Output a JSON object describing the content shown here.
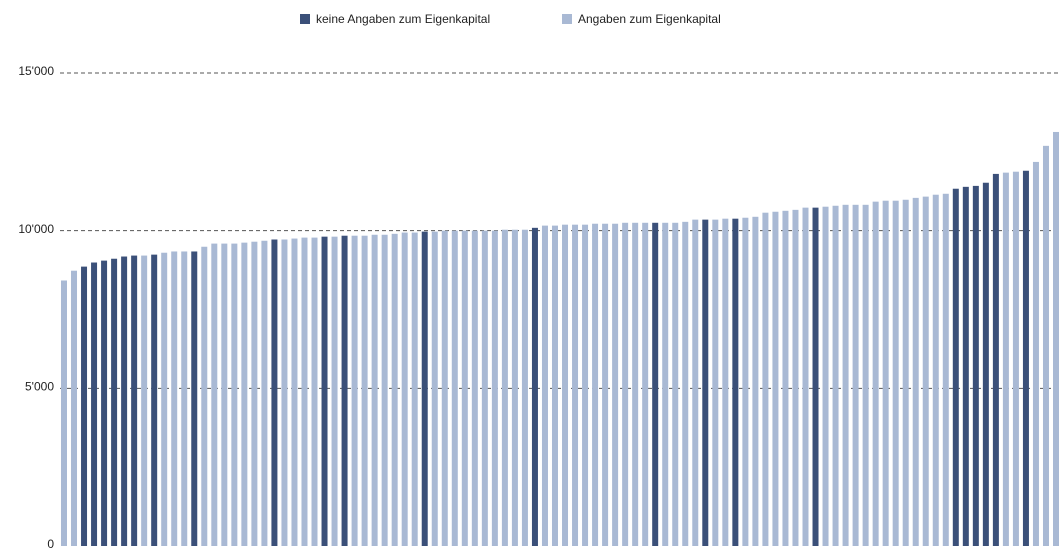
{
  "chart_data": {
    "type": "bar",
    "stacked": false,
    "categories": [
      null,
      null,
      null,
      null,
      null,
      null,
      null,
      null,
      null,
      null,
      null,
      null,
      null,
      null,
      null,
      null,
      null,
      null,
      null,
      null,
      null,
      null,
      null,
      null,
      null,
      null,
      null,
      null,
      null,
      null,
      null,
      null,
      null,
      null,
      null,
      null,
      null,
      null,
      null,
      null,
      null,
      null,
      null,
      null,
      null,
      null,
      null,
      null,
      null,
      null,
      null,
      null,
      null,
      null,
      null,
      null,
      null,
      null,
      null,
      null,
      null,
      null,
      null,
      null,
      null,
      null,
      null,
      null,
      null,
      null,
      null,
      null,
      null,
      null,
      null,
      null,
      null,
      null,
      null,
      null,
      null,
      null,
      null,
      null,
      null,
      null,
      null,
      null,
      null,
      null,
      null,
      null,
      null,
      null,
      null,
      null,
      null,
      null,
      null,
      null
    ],
    "series": [
      {
        "name": "keine Angaben zum Eigenkapital",
        "color": "#3b5079",
        "values": [
          null,
          null,
          8860,
          8990,
          9050,
          9110,
          9180,
          9210,
          null,
          9240,
          null,
          null,
          null,
          9340,
          null,
          null,
          null,
          null,
          null,
          null,
          null,
          9720,
          null,
          null,
          null,
          null,
          9810,
          null,
          9840,
          null,
          null,
          null,
          null,
          null,
          null,
          null,
          9970,
          null,
          null,
          null,
          null,
          null,
          null,
          null,
          null,
          null,
          null,
          10090,
          null,
          null,
          null,
          null,
          null,
          null,
          null,
          null,
          null,
          null,
          null,
          10250,
          null,
          null,
          null,
          null,
          10350,
          null,
          null,
          10380,
          null,
          null,
          null,
          null,
          null,
          null,
          null,
          10730,
          null,
          null,
          null,
          null,
          null,
          null,
          null,
          null,
          null,
          null,
          null,
          null,
          null,
          11330,
          11390,
          11420,
          11520,
          11800,
          null,
          null,
          11900,
          null,
          null,
          null
        ]
      },
      {
        "name": "Angaben zum Eigenkapital",
        "color": "#a9b9d4",
        "values": [
          8420,
          8730,
          null,
          null,
          null,
          null,
          null,
          null,
          9210,
          null,
          9300,
          9340,
          9340,
          null,
          9490,
          9590,
          9590,
          9590,
          9620,
          9650,
          9680,
          null,
          9720,
          9750,
          9780,
          9780,
          null,
          9810,
          null,
          9840,
          9840,
          9870,
          9870,
          9900,
          9940,
          9940,
          null,
          9970,
          10000,
          10000,
          10000,
          10000,
          10000,
          10000,
          10030,
          10030,
          10030,
          null,
          10160,
          10160,
          10190,
          10190,
          10190,
          10220,
          10220,
          10220,
          10250,
          10250,
          10250,
          null,
          10250,
          10250,
          10280,
          10350,
          null,
          10350,
          10380,
          null,
          10410,
          10440,
          10570,
          10600,
          10630,
          10660,
          10730,
          null,
          10760,
          10790,
          10820,
          10820,
          10820,
          10920,
          10950,
          10950,
          10980,
          11040,
          11080,
          11140,
          11170,
          null,
          null,
          null,
          null,
          null,
          11840,
          11870,
          null,
          12180,
          12690,
          13130
        ]
      }
    ],
    "ylim": [
      0,
      15000
    ],
    "yticks": [
      {
        "value": 0,
        "label": "0"
      },
      {
        "value": 5000,
        "label": "5'000"
      },
      {
        "value": 10000,
        "label": "10'000"
      },
      {
        "value": 15000,
        "label": "15'000"
      }
    ],
    "grid": true,
    "legend": "top"
  }
}
